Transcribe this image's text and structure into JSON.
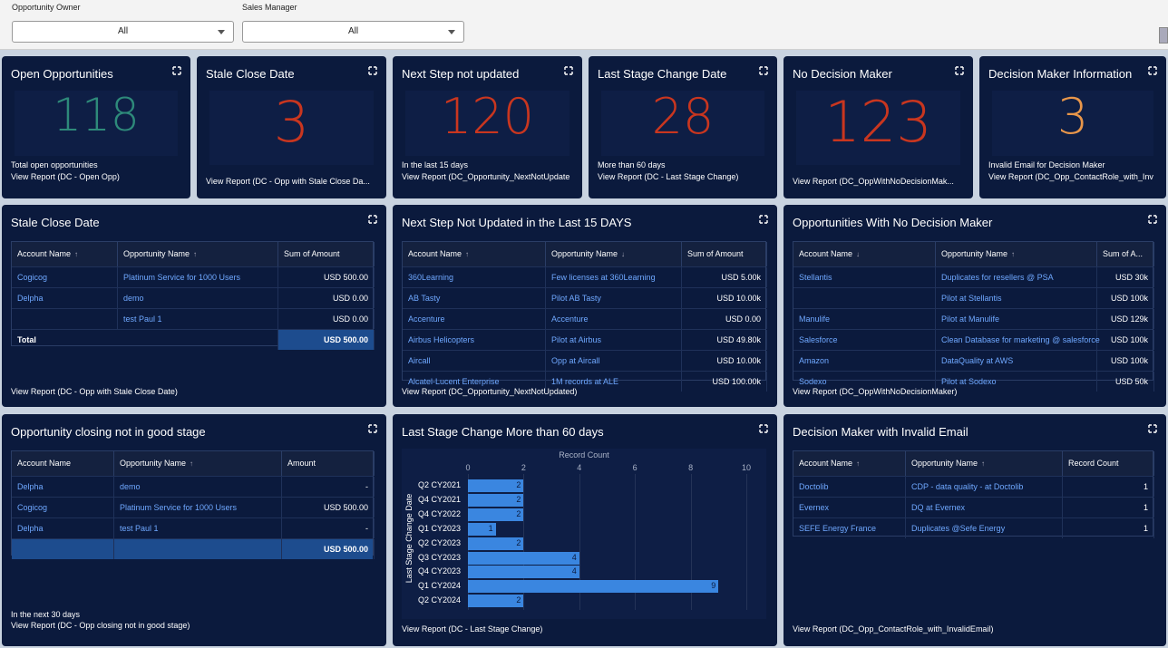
{
  "filters": {
    "opportunity_owner": {
      "label": "Opportunity Owner",
      "value": "All"
    },
    "sales_manager": {
      "label": "Sales Manager",
      "value": "All"
    }
  },
  "kpis": [
    {
      "title": "Open Opportunities",
      "value": "118",
      "subtitle": "Total open opportunities",
      "link": "View Report (DC - Open Opp)",
      "color": "#2e8a7a"
    },
    {
      "title": "Stale Close Date",
      "value": "3",
      "subtitle": "",
      "link": "View Report (DC - Opp with Stale Close Da...",
      "color": "#c9361f"
    },
    {
      "title": "Next Step not updated",
      "value": "120",
      "subtitle": "In the last 15 days",
      "link": "View Report (DC_Opportunity_NextNotUpdate",
      "color": "#c9361f"
    },
    {
      "title": "Last Stage Change Date",
      "value": "28",
      "subtitle": "More than 60 days",
      "link": "View Report (DC - Last Stage Change)",
      "color": "#c9361f"
    },
    {
      "title": "No Decision Maker",
      "value": "123",
      "subtitle": "",
      "link": "View Report (DC_OppWithNoDecisionMak...",
      "color": "#c9361f"
    },
    {
      "title": "Decision Maker Information",
      "value": "3",
      "subtitle": "Invalid Email for Decision Maker",
      "link": "View Report (DC_Opp_ContactRole_with_Inv",
      "color": "#e8964a"
    }
  ],
  "stale": {
    "title": "Stale Close Date",
    "headers": [
      "Account Name",
      "Opportunity Name",
      "Sum of Amount"
    ],
    "rows": [
      [
        "Cogicog",
        "Platinum Service for 1000 Users",
        "USD 500.00"
      ],
      [
        "Delpha",
        "demo",
        "USD 0.00"
      ],
      [
        "",
        "test Paul 1",
        "USD 0.00"
      ]
    ],
    "total_label": "Total",
    "total_value": "USD 500.00",
    "link": "View Report (DC - Opp with Stale Close Date)"
  },
  "nextstep": {
    "title": "Next Step Not Updated in the Last 15 DAYS",
    "headers": [
      "Account Name",
      "Opportunity Name",
      "Sum of Amount"
    ],
    "rows": [
      [
        "360Learning",
        "Few licenses at 360Learning",
        "USD 5.00k"
      ],
      [
        "AB Tasty",
        "Pilot AB Tasty",
        "USD 10.00k"
      ],
      [
        "Accenture",
        "Accenture",
        "USD 0.00"
      ],
      [
        "Airbus Helicopters",
        "Pilot at Airbus",
        "USD 49.80k"
      ],
      [
        "Aircall",
        "Opp at Aircall",
        "USD 10.00k"
      ],
      [
        "Alcatel-Lucent Enterprise",
        "1M records at ALE",
        "USD 100.00k"
      ]
    ],
    "link": "View Report (DC_Opportunity_NextNotUpdated)"
  },
  "nodm": {
    "title": "Opportunities With No Decision Maker",
    "headers": [
      "Account Name",
      "Opportunity Name",
      "Sum of A..."
    ],
    "rows": [
      [
        "Stellantis",
        "Duplicates for resellers @ PSA",
        "USD 30k"
      ],
      [
        "",
        "Pilot at Stellantis",
        "USD 100k"
      ],
      [
        "Manulife",
        "Pilot at Manulife",
        "USD 129k"
      ],
      [
        "Salesforce",
        "Clean Database for marketing @ salesforce",
        "USD 100k"
      ],
      [
        "Amazon",
        "DataQuality at AWS",
        "USD 100k"
      ],
      [
        "Sodexo",
        "Pilot at Sodexo",
        "USD 50k"
      ]
    ],
    "link": "View Report (DC_OppWithNoDecisionMaker)"
  },
  "closing": {
    "title": "Opportunity closing not in good stage",
    "headers": [
      "Account Name",
      "Opportunity Name",
      "Amount"
    ],
    "rows": [
      [
        "Delpha",
        "demo",
        "-"
      ],
      [
        "Cogicog",
        "Platinum Service for 1000 Users",
        "USD 500.00"
      ],
      [
        "Delpha",
        "test Paul 1",
        "-"
      ]
    ],
    "total_value": "USD 500.00",
    "subtitle": "In the next 30 days",
    "link": "View Report (DC - Opp closing not in good stage)"
  },
  "chart_data": {
    "type": "bar",
    "orientation": "horizontal",
    "title": "Last Stage Change More than 60 days",
    "xlabel": "Record Count",
    "ylabel": "Last Stage Change Date",
    "categories": [
      "Q2 CY2021",
      "Q4 CY2021",
      "Q4 CY2022",
      "Q1 CY2023",
      "Q2 CY2023",
      "Q3 CY2023",
      "Q4 CY2023",
      "Q1 CY2024",
      "Q2 CY2024"
    ],
    "values": [
      2,
      2,
      2,
      1,
      2,
      4,
      4,
      9,
      2
    ],
    "xlim": [
      0,
      10
    ],
    "xticks": [
      "0",
      "2",
      "4",
      "6",
      "8",
      "10"
    ],
    "link": "View Report (DC - Last Stage Change)"
  },
  "invalid": {
    "title": "Decision Maker with Invalid Email",
    "headers": [
      "Account Name",
      "Opportunity Name",
      "Record Count"
    ],
    "rows": [
      [
        "Doctolib",
        "CDP - data quality - at Doctolib",
        "1"
      ],
      [
        "Evernex",
        "DQ at Evernex",
        "1"
      ],
      [
        "SEFE Energy France",
        "Duplicates @Sefe Energy",
        "1"
      ]
    ],
    "link": "View Report (DC_Opp_ContactRole_with_InvalidEmail)"
  }
}
